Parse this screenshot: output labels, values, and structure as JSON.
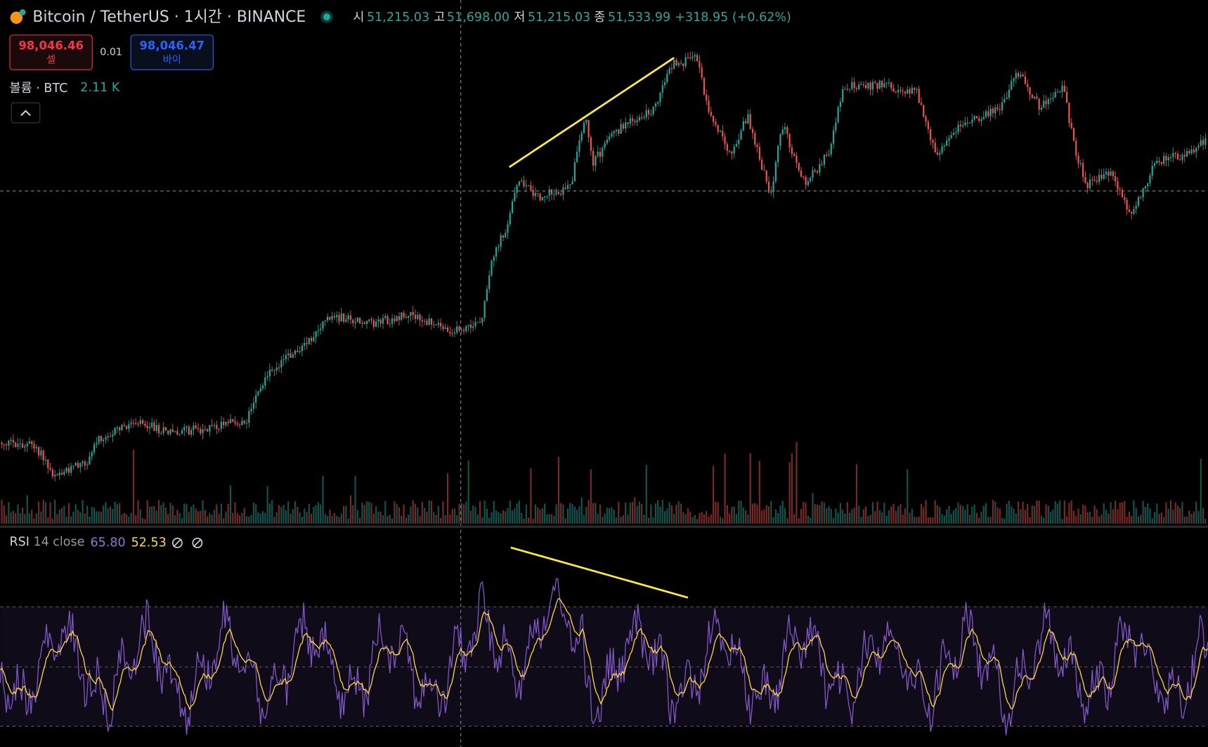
{
  "header": {
    "symbol": "Bitcoin / TetherUS · 1시간 · BINANCE",
    "ohlc": [
      {
        "label": "시",
        "value": "51,215.03"
      },
      {
        "label": "고",
        "value": "51,698.00"
      },
      {
        "label": "저",
        "value": "51,215.03"
      },
      {
        "label": "종",
        "value": "51,533.99"
      }
    ],
    "change": "+318.95 (+0.62%)"
  },
  "trade": {
    "sell_price": "98,046.46",
    "sell_label": "셀",
    "spread": "0.01",
    "buy_price": "98,046.47",
    "buy_label": "바이"
  },
  "volume": {
    "label": "볼륨 · BTC",
    "value": "2.11 K"
  },
  "rsi": {
    "label": "RSI",
    "params": "14 close",
    "value": "65.80",
    "ma": "52.53"
  }
}
